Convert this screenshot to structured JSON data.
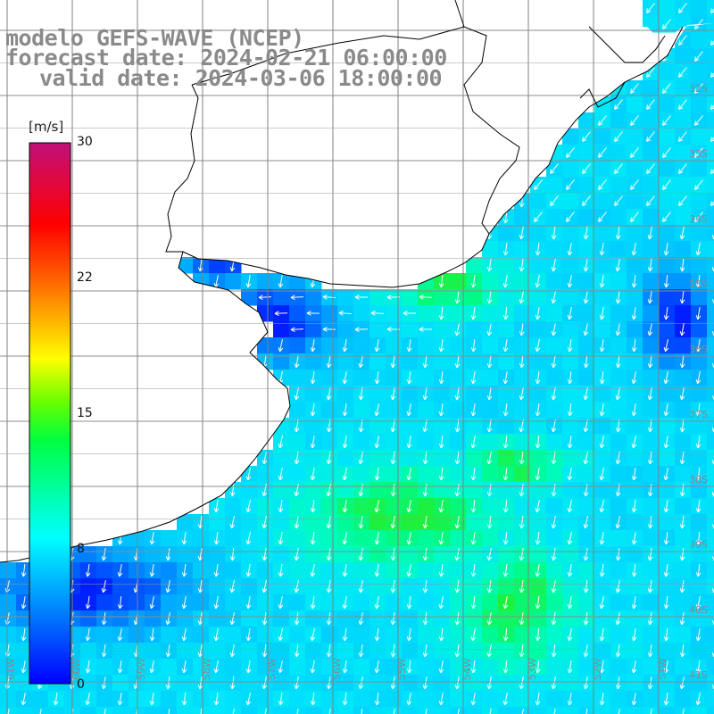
{
  "title": {
    "model": "modelo GEFS-WAVE (NCEP)",
    "forecast": "forecast date: 2024-02-21 06:00:00",
    "valid": "valid date: 2024-03-06 18:00:00"
  },
  "colorbar": {
    "unit": "[m/s]",
    "ticks": [
      {
        "label": "30",
        "value": 30
      },
      {
        "label": "22",
        "value": 22
      },
      {
        "label": "15",
        "value": 15
      },
      {
        "label": "8",
        "value": 8
      },
      {
        "label": "0",
        "value": 0
      }
    ],
    "range": [
      0,
      30
    ],
    "colors": [
      "#0000ff",
      "#00a0ff",
      "#00ffff",
      "#00ff00",
      "#ffff00",
      "#ff8000",
      "#ff0000",
      "#c00080"
    ]
  },
  "map": {
    "variable": "wind speed and direction",
    "land_color": "#ffffff",
    "grid_color": "#808080",
    "coast_color": "#000000",
    "arrow_color": "#ffffff",
    "lat_labels": [
      "32S",
      "33S",
      "34S",
      "35S",
      "36S",
      "37S",
      "38S",
      "39S",
      "40S",
      "41S"
    ],
    "lon_labels": [
      "61W",
      "60W",
      "59W",
      "58W",
      "57W",
      "56W",
      "55W",
      "54W",
      "53W",
      "52W",
      "51W"
    ]
  }
}
